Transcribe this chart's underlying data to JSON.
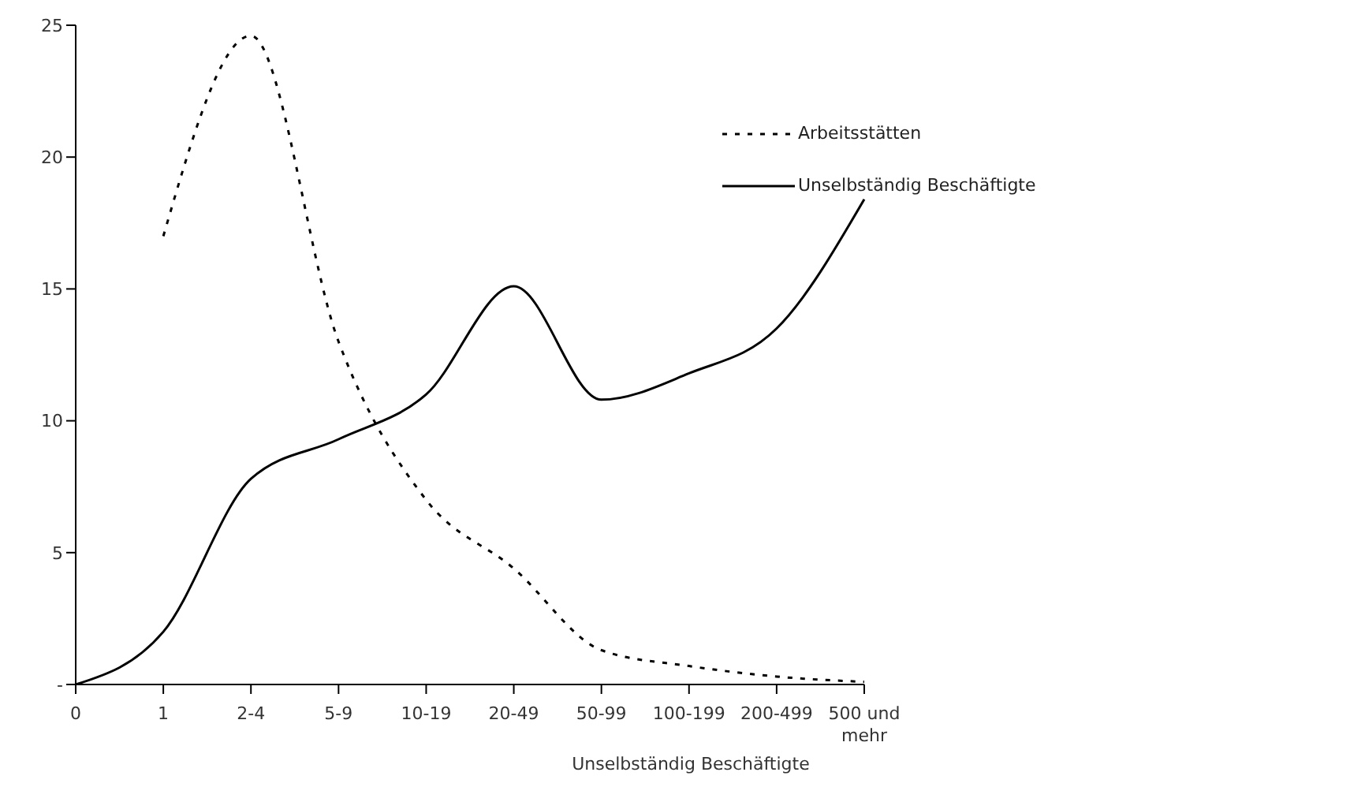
{
  "chart_data": {
    "type": "line",
    "xlabel": "Unselbständig Beschäftigte",
    "categories": [
      "0",
      "1",
      "2-4",
      "5-9",
      "10-19",
      "20-49",
      "50-99",
      "100-199",
      "200-499",
      "500 und mehr"
    ],
    "series": [
      {
        "name": "Arbeitsstätten",
        "color": "#000000",
        "line_style": "dotted",
        "values": [
          null,
          17.0,
          24.6,
          13.0,
          7.0,
          4.4,
          1.3,
          0.7,
          0.3,
          0.1
        ]
      },
      {
        "name": "Unselbständig Beschäftigte",
        "color": "#000000",
        "line_style": "solid",
        "values": [
          0,
          2.0,
          7.8,
          9.3,
          11.0,
          15.1,
          10.8,
          11.8,
          13.5,
          18.4
        ]
      }
    ],
    "ylim": [
      0,
      25
    ],
    "yticks": [
      {
        "value": 0,
        "label": "-"
      },
      5,
      10,
      15,
      20,
      25
    ],
    "grid": false,
    "legend": "top right",
    "marker": "none"
  }
}
